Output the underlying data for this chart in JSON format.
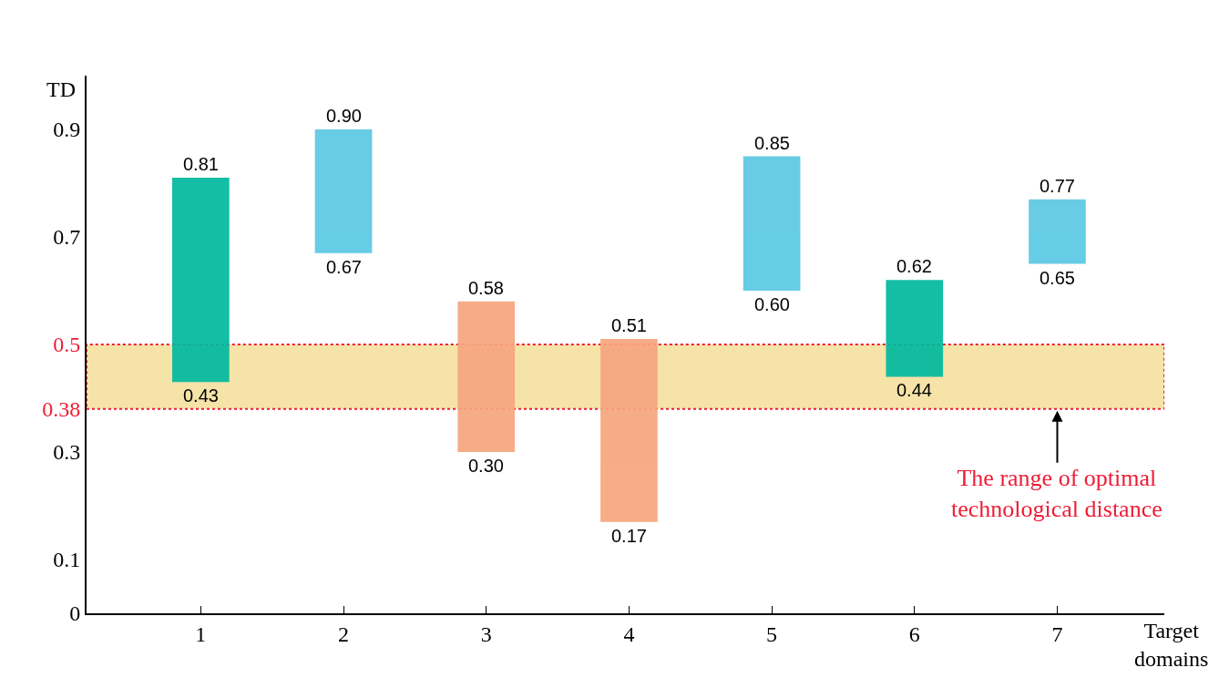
{
  "chart_data": {
    "type": "bar",
    "xlabel": "Target\ndomains",
    "ylabel": "TD",
    "categories": [
      "1",
      "2",
      "3",
      "4",
      "5",
      "6",
      "7"
    ],
    "base": [
      0.43,
      0.67,
      0.3,
      0.17,
      0.6,
      0.44,
      0.65
    ],
    "values": [
      0.38,
      0.23,
      0.28,
      0.34,
      0.25,
      0.18,
      0.12
    ],
    "colors": [
      "#00b99e",
      "#5bc8e3",
      "#f7a67e",
      "#f7a67e",
      "#5bc8e3",
      "#00b99e",
      "#5bc8e3"
    ],
    "ylim": [
      0,
      1.0
    ],
    "yticks": [
      0,
      0.1,
      0.3,
      0.38,
      0.5,
      0.7,
      0.9
    ],
    "grid": false,
    "bands": [
      {
        "axis": "y",
        "from": 0.38,
        "to": 0.5,
        "color": "#f5e3a8"
      }
    ],
    "annotations": [
      {
        "text": "0.81",
        "x": "1",
        "y": 0.81
      },
      {
        "text": "0.43",
        "x": "1",
        "y": 0.43
      },
      {
        "text": "0.90",
        "x": "2",
        "y": 0.9
      },
      {
        "text": "0.67",
        "x": "2",
        "y": 0.67
      },
      {
        "text": "0.58",
        "x": "3",
        "y": 0.58
      },
      {
        "text": "0.30",
        "x": "3",
        "y": 0.3
      },
      {
        "text": "0.51",
        "x": "4",
        "y": 0.51
      },
      {
        "text": "0.17",
        "x": "4",
        "y": 0.17
      },
      {
        "text": "0.85",
        "x": "5",
        "y": 0.85
      },
      {
        "text": "0.60",
        "x": "5",
        "y": 0.6
      },
      {
        "text": "0.62",
        "x": "6",
        "y": 0.62
      },
      {
        "text": "0.44",
        "x": "6",
        "y": 0.44
      },
      {
        "text": "0.77",
        "x": "7",
        "y": 0.77
      },
      {
        "text": "0.65",
        "x": "7",
        "y": 0.65
      },
      {
        "text": "The range of optimal\ntechnological distance",
        "x": "7",
        "y": 0.38
      }
    ]
  }
}
